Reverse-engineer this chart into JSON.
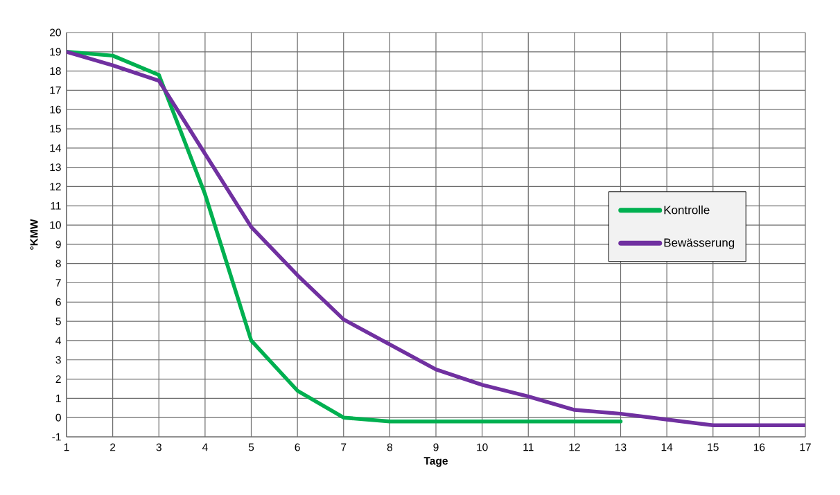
{
  "chart_data": {
    "type": "line",
    "xlabel": "Tage",
    "ylabel": "°KMW",
    "x": [
      1,
      2,
      3,
      4,
      5,
      6,
      7,
      8,
      9,
      10,
      11,
      12,
      13,
      14,
      15,
      16,
      17
    ],
    "series": [
      {
        "name": "Kontrolle",
        "color": "#00b050",
        "values": [
          19.0,
          18.8,
          17.8,
          11.6,
          4.0,
          1.4,
          0.0,
          -0.2,
          -0.2,
          -0.2,
          -0.2,
          -0.2,
          -0.2,
          null,
          null,
          null,
          null
        ]
      },
      {
        "name": "Bewässerung",
        "color": "#7030a0",
        "values": [
          19.0,
          18.3,
          17.5,
          13.7,
          9.9,
          7.4,
          5.1,
          3.8,
          2.5,
          1.7,
          1.1,
          0.4,
          0.2,
          -0.1,
          -0.4,
          -0.4,
          -0.4
        ]
      }
    ],
    "xlim": [
      1,
      17
    ],
    "xticks": [
      1,
      2,
      3,
      4,
      5,
      6,
      7,
      8,
      9,
      10,
      11,
      12,
      13,
      14,
      15,
      16,
      17
    ],
    "ylim": [
      -1,
      20
    ],
    "yticks": [
      -1,
      0,
      1,
      2,
      3,
      4,
      5,
      6,
      7,
      8,
      9,
      10,
      11,
      12,
      13,
      14,
      15,
      16,
      17,
      18,
      19,
      20
    ],
    "grid": true,
    "legend": "right",
    "marker": "none",
    "line_style": "solid"
  }
}
